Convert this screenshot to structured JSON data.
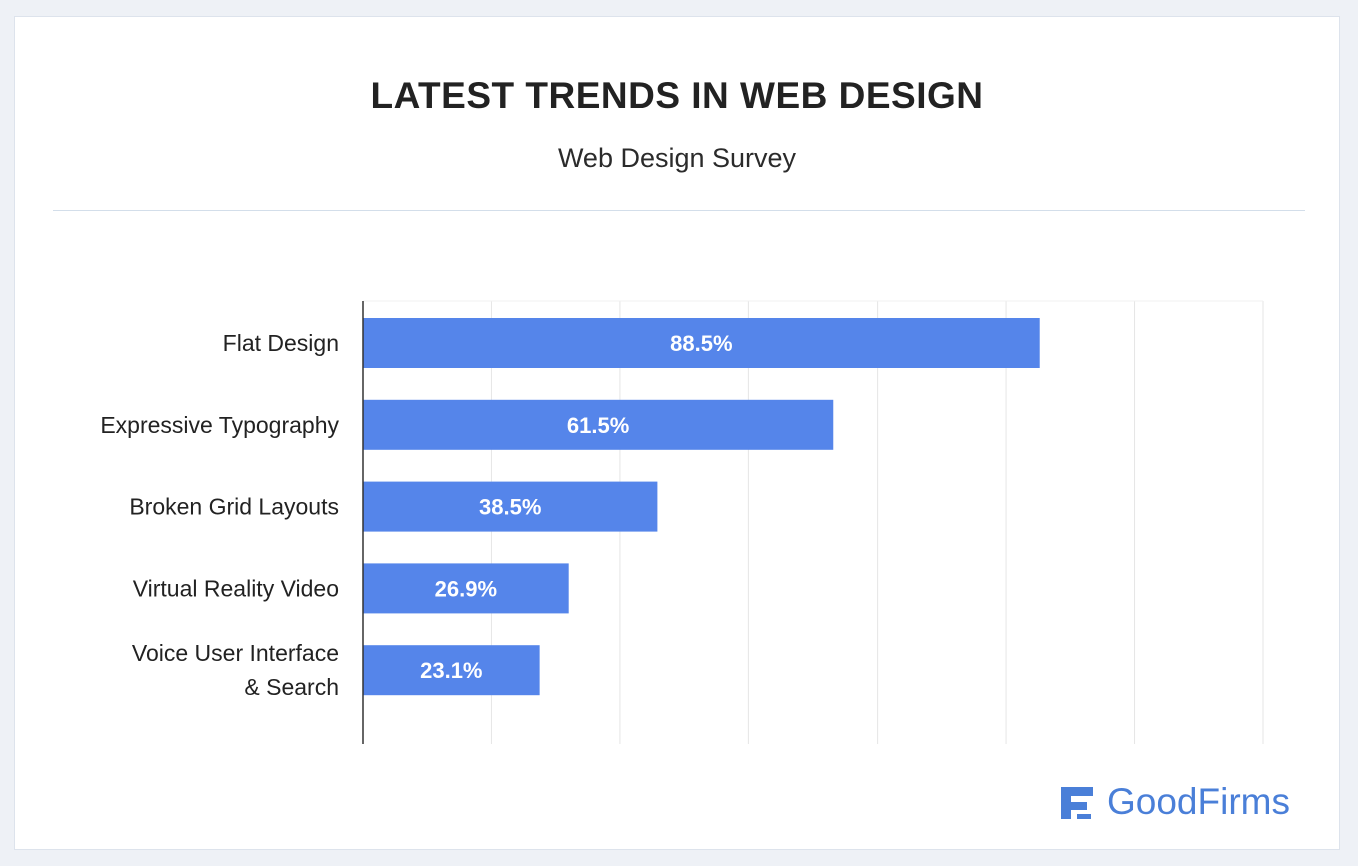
{
  "header": {
    "title": "LATEST TRENDS IN WEB DESIGN",
    "subtitle": "Web Design Survey"
  },
  "brand": {
    "name": "GoodFirms",
    "icon": "goodfirms-logo-icon",
    "color": "#4a7fd8"
  },
  "colors": {
    "bar": "#5585ea",
    "bar_label": "#ffffff",
    "grid": "#e6e6e6",
    "axis": "#333333",
    "category_text": "#222222"
  },
  "chart_data": {
    "type": "bar",
    "orientation": "horizontal",
    "title": "LATEST TRENDS IN WEB DESIGN",
    "subtitle": "Web Design Survey",
    "categories": [
      [
        "Flat Design"
      ],
      [
        "Expressive Typography"
      ],
      [
        "Broken Grid Layouts"
      ],
      [
        "Virtual Reality Video"
      ],
      [
        "Voice User Interface",
        "& Search"
      ]
    ],
    "values": [
      88.5,
      61.5,
      38.5,
      26.9,
      23.1
    ],
    "value_labels": [
      "88.5%",
      "61.5%",
      "38.5%",
      "26.9%",
      "23.1%"
    ],
    "xlim": [
      0,
      117.7
    ],
    "gridlines": [
      16.8,
      33.6,
      50.4,
      67.3,
      84.1,
      100.9,
      117.7
    ],
    "xlabel": "",
    "ylabel": "",
    "grid": true,
    "legend": "none"
  }
}
